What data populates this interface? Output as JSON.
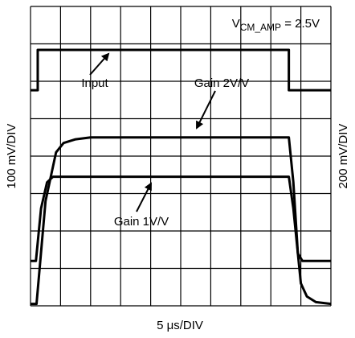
{
  "chart_data": {
    "type": "line",
    "xlabel": "5 μs/DIV",
    "ylabel": "100 mV/DIV",
    "y2label": "200 mV/DIV",
    "condition": {
      "text": "V",
      "subscript": "CM_AMP",
      "suffix": " = 2.5V"
    },
    "annotations": [
      "Input",
      "Gain 2V/V",
      "Gain 1V/V"
    ],
    "xlim": [
      0,
      10
    ],
    "ylim": [
      0,
      8
    ],
    "xticks": [
      0,
      1,
      2,
      3,
      4,
      5,
      6,
      7,
      8,
      9,
      10
    ],
    "yticks": [
      0,
      1,
      2,
      3,
      4,
      5,
      6,
      7,
      8
    ],
    "grid": true,
    "color": "#000000",
    "series": [
      {
        "x": [
          0,
          0.24,
          0.24,
          8.6,
          8.6,
          10
        ],
        "values": [
          5.76,
          5.76,
          6.84,
          6.84,
          5.76,
          5.76
        ]
      },
      {
        "x": [
          0,
          0.2,
          0.5,
          0.85,
          1.1,
          1.5,
          2.0,
          2.5,
          8.6,
          8.75,
          8.9,
          9.0,
          9.2,
          9.5,
          10
        ],
        "values": [
          0.05,
          0.05,
          2.8,
          4.1,
          4.35,
          4.45,
          4.5,
          4.5,
          4.5,
          3.3,
          1.4,
          0.6,
          0.25,
          0.1,
          0.05
        ]
      },
      {
        "x": [
          0,
          0.18,
          0.35,
          0.55,
          0.75,
          8.6,
          8.75,
          8.9,
          9.05,
          10
        ],
        "values": [
          1.2,
          1.2,
          2.6,
          3.3,
          3.45,
          3.45,
          2.6,
          1.4,
          1.2,
          1.2
        ]
      }
    ]
  }
}
